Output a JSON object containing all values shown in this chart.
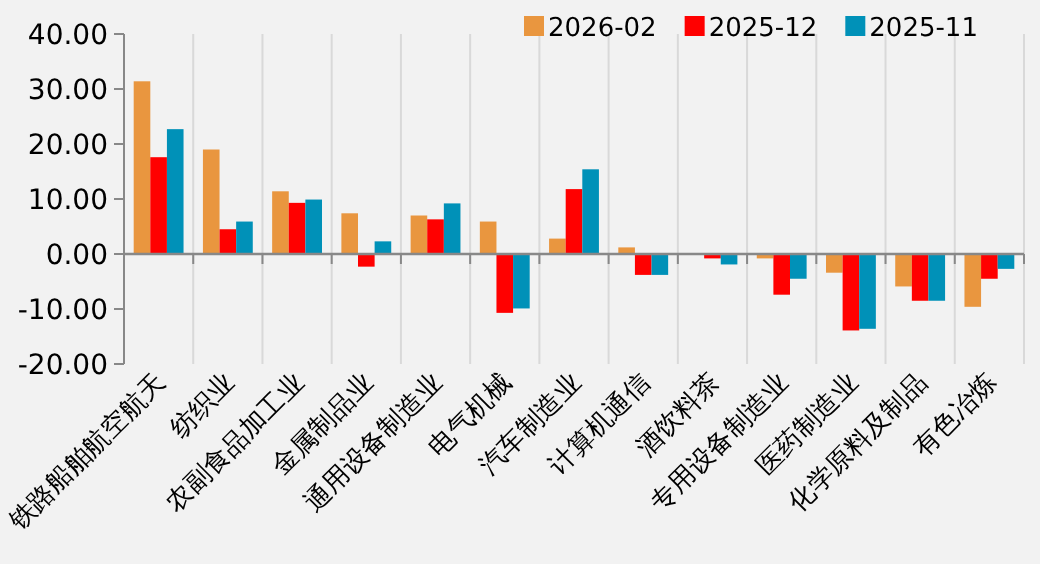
{
  "chart_data": {
    "type": "bar",
    "categories": [
      "铁路船舶航空航天",
      "纺织业",
      "农副食品加工业",
      "金属制品业",
      "通用设备制造业",
      "电气机械",
      "汽车制造业",
      "计算机通信",
      "酒饮料茶",
      "专用设备制造业",
      "医药制造业",
      "化学原料及制品",
      "有色冶炼"
    ],
    "series": [
      {
        "name": "2026-02",
        "color": "#e9963f",
        "values": [
          31.4,
          19.0,
          11.4,
          7.4,
          7.0,
          5.9,
          2.8,
          1.2,
          null,
          -0.8,
          -3.4,
          -5.9,
          -9.6
        ]
      },
      {
        "name": "2025-12",
        "color": "#ff0000",
        "values": [
          17.6,
          4.5,
          9.3,
          -2.3,
          6.3,
          -10.7,
          11.8,
          -3.8,
          -0.8,
          -7.4,
          -13.9,
          -8.5,
          -4.5
        ]
      },
      {
        "name": "2025-11",
        "color": "#0091b8",
        "values": [
          22.7,
          5.9,
          9.9,
          2.3,
          9.2,
          -9.9,
          15.4,
          -3.8,
          -1.9,
          -4.5,
          -13.6,
          -8.5,
          -2.7
        ]
      }
    ],
    "ylim": [
      -20,
      40
    ],
    "yticks": [
      {
        "value": -20,
        "label": "-20.00"
      },
      {
        "value": -10,
        "label": "-10.00"
      },
      {
        "value": 0,
        "label": "0.00"
      },
      {
        "value": 10,
        "label": "10.00"
      },
      {
        "value": 20,
        "label": "20.00"
      },
      {
        "value": 30,
        "label": "30.00"
      },
      {
        "value": 40,
        "label": "40.00"
      }
    ],
    "grid": "x",
    "legend": "top right"
  }
}
